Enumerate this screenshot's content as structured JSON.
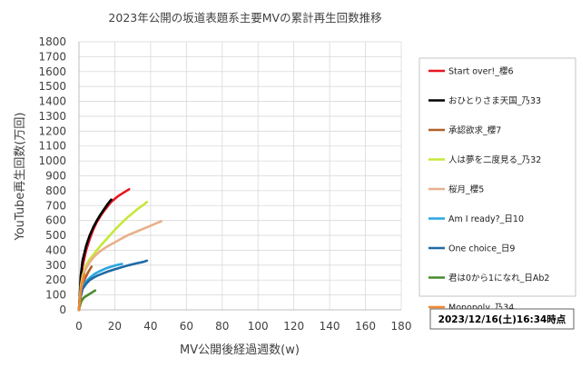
{
  "chart_data": {
    "type": "line",
    "title": "2023年公開の坂道表題系主要MVの累計再生回数推移",
    "xlabel": "MV公開後経過週数(w)",
    "ylabel": "YouTube再生回数(万回)",
    "xlim": [
      0,
      180
    ],
    "ylim": [
      0,
      1800
    ],
    "x_ticks": [
      "0",
      "20",
      "40",
      "60",
      "80",
      "100",
      "120",
      "140",
      "160",
      "180"
    ],
    "y_ticks": [
      "0",
      "100",
      "200",
      "300",
      "400",
      "500",
      "600",
      "700",
      "800",
      "900",
      "1000",
      "1100",
      "1200",
      "1300",
      "1400",
      "1500",
      "1600",
      "1700",
      "1800"
    ],
    "grid": true,
    "legend_position": "right",
    "annotation": "2023/12/16(土)16:34時点",
    "series": [
      {
        "name": "Start over!_櫻6",
        "color": "#e8141e",
        "x": [
          0,
          1,
          2,
          4,
          6,
          8,
          10,
          12,
          14,
          16,
          18,
          20,
          22,
          24,
          26,
          28
        ],
        "y": [
          0,
          190,
          290,
          400,
          475,
          540,
          590,
          630,
          665,
          695,
          725,
          745,
          765,
          780,
          795,
          810
        ]
      },
      {
        "name": "おひとりさま天国_乃33",
        "color": "#000000",
        "x": [
          0,
          1,
          2,
          4,
          6,
          8,
          10,
          12,
          14,
          16,
          18
        ],
        "y": [
          0,
          230,
          330,
          430,
          500,
          555,
          600,
          640,
          675,
          710,
          740
        ]
      },
      {
        "name": "承認欲求_櫻7",
        "color": "#b0602a",
        "x": [
          0,
          1,
          2,
          3,
          5,
          7
        ],
        "y": [
          0,
          110,
          160,
          200,
          250,
          290
        ]
      },
      {
        "name": "人は夢を二度見る_乃32",
        "color": "#c6e83a",
        "x": [
          0,
          1,
          2,
          4,
          6,
          8,
          10,
          12,
          15,
          18,
          21,
          24,
          27,
          30,
          33,
          36,
          38
        ],
        "y": [
          0,
          160,
          230,
          300,
          340,
          370,
          400,
          430,
          470,
          510,
          550,
          585,
          620,
          650,
          680,
          705,
          725
        ]
      },
      {
        "name": "桜月_櫻5",
        "color": "#e8b08a",
        "x": [
          0,
          1,
          2,
          4,
          6,
          8,
          10,
          12,
          15,
          18,
          21,
          24,
          28,
          32,
          36,
          40,
          44,
          46
        ],
        "y": [
          0,
          150,
          220,
          280,
          320,
          350,
          375,
          395,
          420,
          440,
          460,
          480,
          505,
          525,
          545,
          565,
          585,
          595
        ]
      },
      {
        "name": "Am I ready?_日10",
        "color": "#29a6e0",
        "x": [
          0,
          1,
          2,
          4,
          6,
          8,
          10,
          12,
          15,
          18,
          21,
          24
        ],
        "y": [
          0,
          100,
          150,
          190,
          215,
          235,
          250,
          262,
          278,
          290,
          300,
          308
        ]
      },
      {
        "name": "One choice_日9",
        "color": "#1f6aa5",
        "x": [
          0,
          1,
          2,
          4,
          6,
          8,
          10,
          13,
          16,
          20,
          24,
          28,
          32,
          36,
          38
        ],
        "y": [
          0,
          90,
          140,
          175,
          200,
          215,
          228,
          243,
          257,
          272,
          287,
          300,
          312,
          322,
          330
        ]
      },
      {
        "name": "君は0から1になれ_日Ab2",
        "color": "#4a8a2e",
        "x": [
          0,
          1,
          2,
          3,
          5,
          7,
          9
        ],
        "y": [
          0,
          50,
          70,
          85,
          100,
          115,
          130
        ]
      },
      {
        "name": "Monopoly_乃34",
        "color": "#f08830",
        "x": [
          0,
          1,
          2,
          3
        ],
        "y": [
          0,
          130,
          190,
          240
        ]
      }
    ]
  }
}
